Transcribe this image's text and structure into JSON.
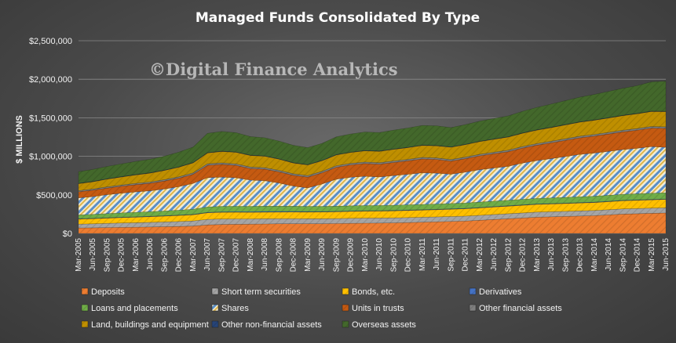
{
  "chart_data": {
    "type": "area",
    "stacked": true,
    "title": "Managed Funds Consolidated By Type",
    "watermark": "©Digital Finance Analytics",
    "ylabel": "$ MILLIONS",
    "xlabel": "",
    "ylim": [
      0,
      2500000
    ],
    "yticks": [
      0,
      500000,
      1000000,
      1500000,
      2000000,
      2500000
    ],
    "ytick_labels": [
      "$0",
      "$500,000",
      "$1,000,000",
      "$1,500,000",
      "$2,000,000",
      "$2,500,000"
    ],
    "grid": true,
    "legend_position": "bottom",
    "x": [
      "Mar-2005",
      "Jun-2005",
      "Sep-2005",
      "Dec-2005",
      "Mar-2006",
      "Jun-2006",
      "Sep-2006",
      "Dec-2006",
      "Mar-2007",
      "Jun-2007",
      "Sep-2007",
      "Dec-2007",
      "Mar-2008",
      "Jun-2008",
      "Sep-2008",
      "Dec-2008",
      "Mar-2009",
      "Jun-2009",
      "Sep-2009",
      "Dec-2009",
      "Mar-2010",
      "Jun-2010",
      "Sep-2010",
      "Dec-2010",
      "Mar-2011",
      "Jun-2011",
      "Sep-2011",
      "Dec-2011",
      "Mar-2012",
      "Jun-2012",
      "Sep-2012",
      "Dec-2012",
      "Mar-2013",
      "Jun-2013",
      "Sep-2013",
      "Dec-2013",
      "Mar-2014",
      "Jun-2014",
      "Sep-2014",
      "Dec-2014",
      "Mar-2015",
      "Jun-2015"
    ],
    "series": [
      {
        "name": "Deposits",
        "color": "#ED7D31",
        "pattern": "solid",
        "values": [
          70000,
          72000,
          75000,
          78000,
          80000,
          83000,
          86000,
          90000,
          95000,
          110000,
          115000,
          118000,
          120000,
          122000,
          125000,
          125000,
          125000,
          125000,
          127000,
          130000,
          132000,
          134000,
          136000,
          140000,
          145000,
          150000,
          155000,
          160000,
          170000,
          180000,
          190000,
          200000,
          210000,
          215000,
          220000,
          225000,
          230000,
          240000,
          250000,
          255000,
          260000,
          265000
        ]
      },
      {
        "name": "Short term securities",
        "color": "#A5A5A5",
        "pattern": "solid",
        "values": [
          50000,
          52000,
          55000,
          57000,
          58000,
          60000,
          62000,
          64000,
          66000,
          72000,
          72000,
          70000,
          68000,
          68000,
          66000,
          66000,
          65000,
          65000,
          65000,
          66000,
          66000,
          65000,
          65000,
          65000,
          65000,
          64000,
          64000,
          64000,
          64000,
          65000,
          65000,
          65000,
          66000,
          66000,
          66000,
          67000,
          67000,
          67000,
          68000,
          68000,
          68000,
          68000
        ]
      },
      {
        "name": "Bonds, etc.",
        "color": "#FFC000",
        "pattern": "solid",
        "values": [
          65000,
          66000,
          68000,
          70000,
          72000,
          74000,
          76000,
          78000,
          80000,
          85000,
          86000,
          86000,
          85000,
          85000,
          85000,
          86000,
          86000,
          87000,
          88000,
          89000,
          90000,
          90000,
          91000,
          92000,
          92000,
          93000,
          94000,
          95000,
          96000,
          97000,
          98000,
          99000,
          100000,
          100000,
          101000,
          102000,
          103000,
          104000,
          105000,
          106000,
          107000,
          108000
        ]
      },
      {
        "name": "Derivatives",
        "color": "#4472C4",
        "pattern": "solid",
        "values": [
          5000,
          5000,
          5000,
          5000,
          5000,
          5000,
          5000,
          5000,
          6000,
          6000,
          7000,
          8000,
          9000,
          9000,
          9000,
          8000,
          7000,
          6000,
          6000,
          6000,
          6000,
          6000,
          6000,
          6000,
          6000,
          6000,
          6000,
          6000,
          6000,
          6000,
          6000,
          6000,
          6000,
          6000,
          6000,
          6000,
          6000,
          6000,
          6000,
          6000,
          6000,
          6000
        ]
      },
      {
        "name": "Loans and placements",
        "color": "#70AD47",
        "pattern": "solid",
        "values": [
          50000,
          52000,
          54000,
          56000,
          58000,
          60000,
          62000,
          64000,
          66000,
          70000,
          70000,
          70000,
          69000,
          69000,
          68000,
          68000,
          67000,
          67000,
          67000,
          67000,
          67000,
          67000,
          67000,
          68000,
          68000,
          68000,
          69000,
          69000,
          70000,
          70000,
          71000,
          72000,
          72000,
          73000,
          74000,
          75000,
          76000,
          77000,
          78000,
          79000,
          80000,
          80000
        ]
      },
      {
        "name": "Shares",
        "color": "#F3E2A9",
        "pattern": "shares",
        "values": [
          220000,
          230000,
          245000,
          255000,
          265000,
          270000,
          285000,
          305000,
          335000,
          380000,
          380000,
          370000,
          340000,
          330000,
          300000,
          260000,
          240000,
          290000,
          350000,
          370000,
          380000,
          370000,
          385000,
          395000,
          410000,
          400000,
          380000,
          400000,
          420000,
          430000,
          440000,
          470000,
          490000,
          510000,
          530000,
          550000,
          560000,
          570000,
          580000,
          590000,
          605000,
          590000
        ]
      },
      {
        "name": "Units in trusts",
        "color": "#C55A11",
        "pattern": "solid",
        "values": [
          80000,
          83000,
          86000,
          90000,
          94000,
          98000,
          103000,
          110000,
          118000,
          160000,
          165000,
          160000,
          150000,
          150000,
          145000,
          140000,
          140000,
          145000,
          155000,
          160000,
          165000,
          165000,
          170000,
          175000,
          180000,
          178000,
          170000,
          175000,
          180000,
          185000,
          190000,
          195000,
          200000,
          205000,
          210000,
          215000,
          220000,
          225000,
          230000,
          235000,
          240000,
          245000
        ]
      },
      {
        "name": "Other financial assets",
        "color": "#7F7F7F",
        "pattern": "solid",
        "values": [
          15000,
          15000,
          16000,
          16000,
          17000,
          17000,
          18000,
          18000,
          19000,
          20000,
          20000,
          20000,
          20000,
          20000,
          20000,
          20000,
          20000,
          20000,
          20000,
          20000,
          20000,
          20000,
          20000,
          20000,
          20000,
          20000,
          20000,
          20000,
          20000,
          20000,
          20000,
          20000,
          21000,
          21000,
          21000,
          21000,
          21000,
          21000,
          21000,
          21000,
          21000,
          21000
        ]
      },
      {
        "name": "Land, buildings and equipment",
        "color": "#BF8F00",
        "pattern": "solid",
        "values": [
          90000,
          95000,
          100000,
          105000,
          110000,
          115000,
          120000,
          125000,
          130000,
          140000,
          148000,
          150000,
          150000,
          148000,
          145000,
          140000,
          138000,
          138000,
          140000,
          142000,
          145000,
          147000,
          150000,
          152000,
          155000,
          157000,
          160000,
          162000,
          165000,
          168000,
          170000,
          172000,
          175000,
          177000,
          180000,
          182000,
          185000,
          187000,
          190000,
          192000,
          195000,
          197000
        ]
      },
      {
        "name": "Other non-financial assets",
        "color": "#264478",
        "pattern": "solid",
        "values": [
          5000,
          5000,
          5000,
          5000,
          5000,
          5000,
          5000,
          5000,
          5000,
          5000,
          5000,
          5000,
          5000,
          5000,
          5000,
          5000,
          5000,
          5000,
          5000,
          5000,
          5000,
          5000,
          5000,
          5000,
          5000,
          5000,
          5000,
          5000,
          5000,
          5000,
          5000,
          5000,
          5000,
          5000,
          5000,
          5000,
          5000,
          5000,
          5000,
          5000,
          5000,
          5000
        ]
      },
      {
        "name": "Overseas assets",
        "color": "#43682B",
        "pattern": "solid",
        "values": [
          150000,
          155000,
          160000,
          165000,
          170000,
          175000,
          180000,
          190000,
          200000,
          250000,
          255000,
          250000,
          240000,
          235000,
          230000,
          225000,
          220000,
          220000,
          230000,
          235000,
          240000,
          240000,
          245000,
          250000,
          255000,
          255000,
          250000,
          255000,
          260000,
          265000,
          270000,
          280000,
          290000,
          300000,
          310000,
          320000,
          330000,
          340000,
          350000,
          360000,
          380000,
          390000
        ]
      }
    ]
  }
}
